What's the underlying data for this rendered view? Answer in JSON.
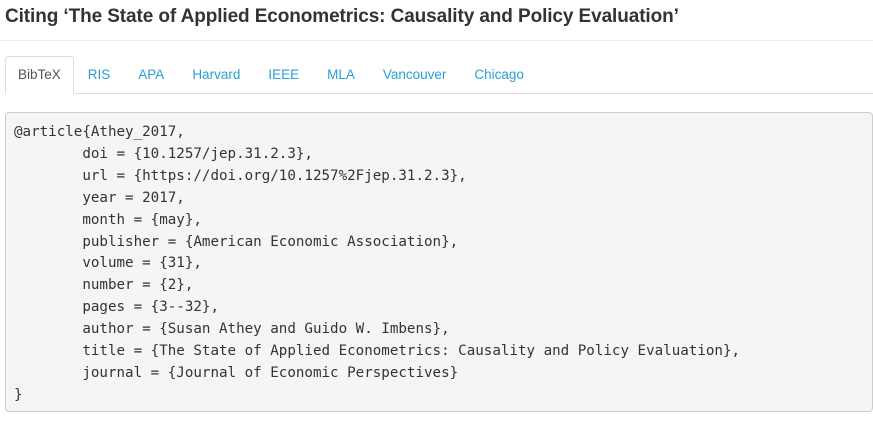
{
  "page": {
    "title": "Citing ‘The State of Applied Econometrics: Causality and Policy Evaluation’"
  },
  "tabs": [
    {
      "label": "BibTeX",
      "active": true
    },
    {
      "label": "RIS",
      "active": false
    },
    {
      "label": "APA",
      "active": false
    },
    {
      "label": "Harvard",
      "active": false
    },
    {
      "label": "IEEE",
      "active": false
    },
    {
      "label": "MLA",
      "active": false
    },
    {
      "label": "Vancouver",
      "active": false
    },
    {
      "label": "Chicago",
      "active": false
    }
  ],
  "citation": {
    "bibtex": "@article{Athey_2017,\n\tdoi = {10.1257/jep.31.2.3},\n\turl = {https://doi.org/10.1257%2Fjep.31.2.3},\n\tyear = 2017,\n\tmonth = {may},\n\tpublisher = {American Economic Association},\n\tvolume = {31},\n\tnumber = {2},\n\tpages = {3--32},\n\tauthor = {Susan Athey and Guido W. Imbens},\n\ttitle = {The State of Applied Econometrics: Causality and Policy Evaluation},\n\tjournal = {Journal of Economic Perspectives}\n}"
  },
  "colors": {
    "link": "#2a9fd6",
    "code_background": "#f5f5f5"
  }
}
